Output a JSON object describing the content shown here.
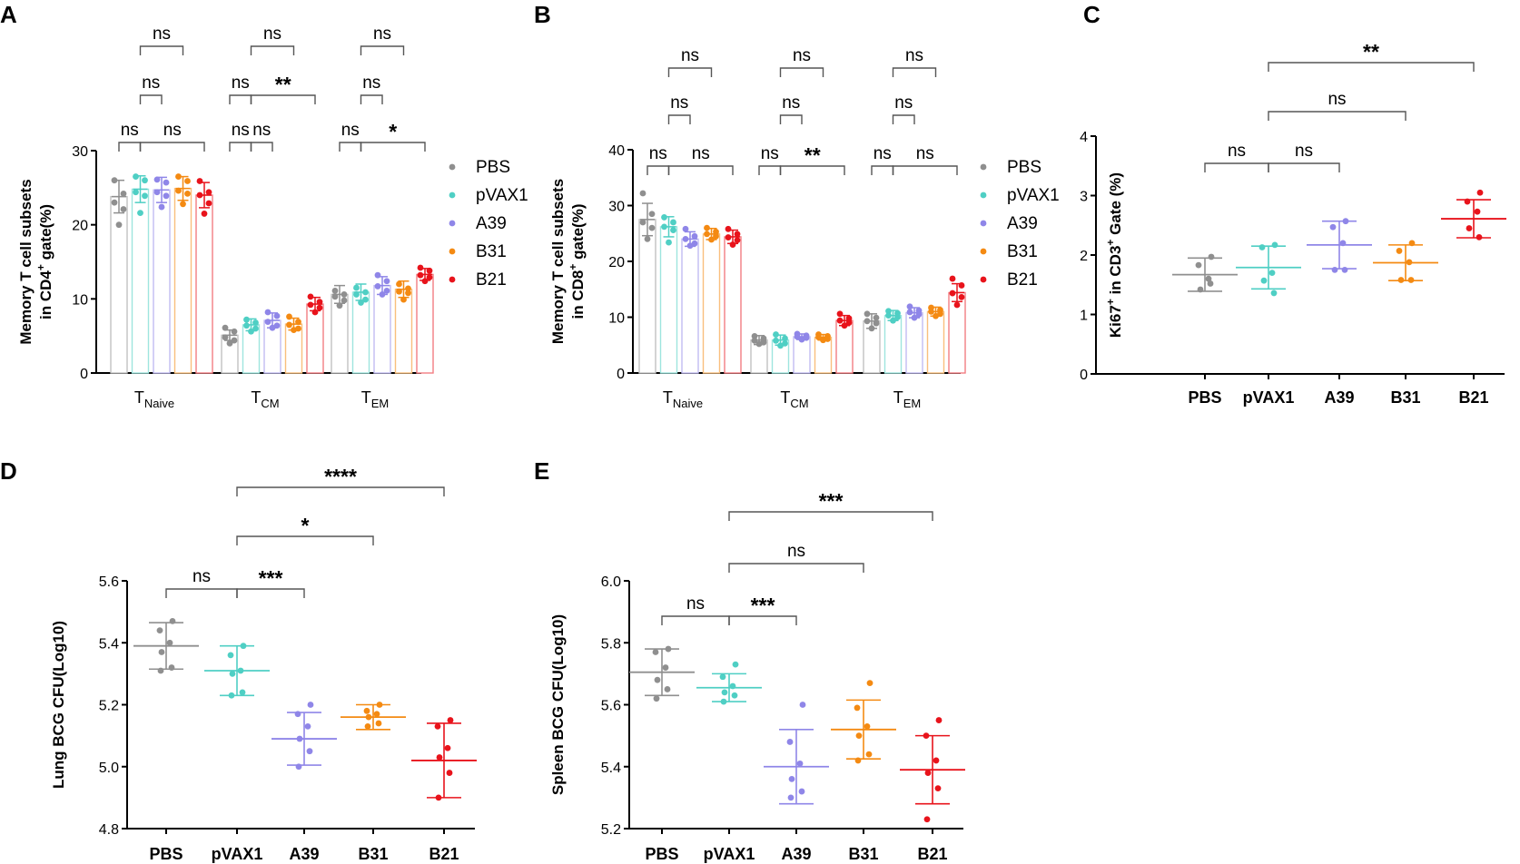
{
  "colors": {
    "PBS": "#8f8f8f",
    "pVAX1": "#4fcfc4",
    "A39": "#8f86e8",
    "B31": "#f48a12",
    "B21": "#e8131b",
    "axis": "#000000",
    "bracket": "#555555"
  },
  "chart_data": [
    {
      "panel": "A",
      "type": "bar",
      "ylabel_line1": "Memory T cell subsets",
      "ylabel_line2_pre": "in CD4",
      "ylabel_sup": "+",
      "ylabel_line2_post": " gate(%)",
      "ylim": [
        0,
        30
      ],
      "yticks": [
        0,
        10,
        20,
        30
      ],
      "categories": [
        {
          "main": "T",
          "sub": "Naive"
        },
        {
          "main": "T",
          "sub": "CM"
        },
        {
          "main": "T",
          "sub": "EM"
        }
      ],
      "legend": [
        "PBS",
        "pVAX1",
        "A39",
        "B31",
        "B21"
      ],
      "series": [
        {
          "name": "PBS",
          "values": [
            23.8,
            5.1,
            10.6
          ],
          "sd": [
            2.2,
            0.7,
            1.2
          ],
          "points": [
            [
              26.0,
              24.2,
              23.0,
              22.1,
              20.0
            ],
            [
              6.1,
              5.6,
              4.8,
              4.4,
              4.0
            ]
          ]
        },
        {
          "name": "pVAX1",
          "values": [
            24.8,
            6.5,
            10.9
          ],
          "sd": [
            1.8,
            0.8,
            1.1
          ],
          "points": [
            [
              26.5,
              26.0,
              24.4,
              23.9,
              21.6
            ],
            [
              7.2,
              6.8,
              6.4,
              6.0,
              5.6
            ]
          ]
        },
        {
          "name": "A39",
          "values": [
            24.7,
            7.1,
            11.8
          ],
          "sd": [
            1.7,
            1.0,
            1.2
          ],
          "points": [
            [
              26.1,
              25.7,
              24.4,
              23.9,
              22.4
            ],
            [
              8.2,
              7.7,
              6.9,
              6.4,
              6.1
            ]
          ]
        },
        {
          "name": "B31",
          "values": [
            24.9,
            6.6,
            11.3
          ],
          "sd": [
            1.6,
            0.8,
            1.1
          ],
          "points": [
            [
              26.5,
              25.9,
              24.6,
              24.2,
              22.8
            ],
            [
              7.6,
              6.9,
              6.5,
              6.0,
              5.8
            ]
          ]
        },
        {
          "name": "B21",
          "values": [
            24.0,
            9.3,
            13.3
          ],
          "sd": [
            1.7,
            0.9,
            0.8
          ],
          "points": [
            [
              25.9,
              24.4,
              24.0,
              22.9,
              21.5
            ],
            [
              10.3,
              9.6,
              9.2,
              8.8,
              8.2
            ]
          ]
        }
      ],
      "em_points": [
        [
          11.1,
          10.6,
          10.3,
          9.8,
          9.1
        ],
        [
          11.5,
          10.9,
          10.6,
          9.9,
          9.5
        ],
        [
          13.2,
          12.4,
          11.7,
          11.1,
          10.6
        ],
        [
          12.0,
          11.4,
          11.0,
          10.8,
          9.9
        ],
        [
          14.2,
          13.8,
          13.2,
          12.9,
          12.4
        ]
      ],
      "annotations": [
        {
          "group": 0,
          "from": 0,
          "to": 1,
          "level": 1,
          "label": "ns"
        },
        {
          "group": 0,
          "from": 1,
          "to": 4,
          "level": 1,
          "label": "ns"
        },
        {
          "group": 0,
          "from": 1,
          "to": 2,
          "level": 2,
          "label": "ns"
        },
        {
          "group": 0,
          "from": 1,
          "to": 3,
          "level": 3,
          "label": "ns"
        },
        {
          "group": 1,
          "from": 0,
          "to": 1,
          "level": 1,
          "label": "ns"
        },
        {
          "group": 1,
          "from": 1,
          "to": 2,
          "level": 1,
          "label": "ns"
        },
        {
          "group": 1,
          "from": 0,
          "to": 1,
          "level": 2,
          "label": "ns"
        },
        {
          "group": 1,
          "from": 1,
          "to": 4,
          "level": 2,
          "label": "**"
        },
        {
          "group": 1,
          "from": 1,
          "to": 3,
          "level": 3,
          "label": "ns"
        },
        {
          "group": 2,
          "from": 0,
          "to": 1,
          "level": 1,
          "label": "ns"
        },
        {
          "group": 2,
          "from": 1,
          "to": 4,
          "level": 1,
          "label": "*"
        },
        {
          "group": 2,
          "from": 1,
          "to": 2,
          "level": 2,
          "label": "ns"
        },
        {
          "group": 2,
          "from": 1,
          "to": 3,
          "level": 3,
          "label": "ns"
        }
      ]
    },
    {
      "panel": "B",
      "type": "bar",
      "ylabel_line1": "Memory T cell subsets",
      "ylabel_line2_pre": "in CD8",
      "ylabel_sup": "+",
      "ylabel_line2_post": " gate(%)",
      "ylim": [
        0,
        40
      ],
      "yticks": [
        0,
        10,
        20,
        30,
        40
      ],
      "categories": [
        {
          "main": "T",
          "sub": "Naive"
        },
        {
          "main": "T",
          "sub": "CM"
        },
        {
          "main": "T",
          "sub": "EM"
        }
      ],
      "legend": [
        "PBS",
        "pVAX1",
        "A39",
        "B31",
        "B21"
      ],
      "series": [
        {
          "name": "PBS",
          "values": [
            27.5,
            5.9,
            9.3
          ],
          "sd": [
            2.9,
            0.8,
            1.3
          ],
          "points": [
            [
              32.2,
              28.5,
              27.0,
              26.0,
              24.0
            ],
            [
              6.6,
              6.2,
              5.8,
              5.5,
              5.2
            ]
          ]
        },
        {
          "name": "pVAX1",
          "values": [
            26.2,
            5.9,
            10.3
          ],
          "sd": [
            1.8,
            0.9,
            0.9
          ],
          "points": [
            [
              27.9,
              27.0,
              26.2,
              25.6,
              23.4
            ],
            [
              6.9,
              6.2,
              5.8,
              5.3,
              4.9
            ]
          ]
        },
        {
          "name": "A39",
          "values": [
            24.0,
            6.5,
            10.8
          ],
          "sd": [
            1.3,
            0.5,
            0.9
          ],
          "points": [
            [
              25.8,
              24.5,
              24.0,
              23.2,
              22.8
            ],
            [
              7.0,
              6.7,
              6.5,
              6.3,
              6.0
            ]
          ]
        },
        {
          "name": "B31",
          "values": [
            24.9,
            6.4,
            11.0
          ],
          "sd": [
            1.0,
            0.5,
            0.8
          ],
          "points": [
            [
              26.0,
              25.3,
              24.9,
              24.5,
              23.9
            ],
            [
              6.9,
              6.6,
              6.4,
              6.1,
              5.9
            ]
          ]
        },
        {
          "name": "B21",
          "values": [
            24.4,
            9.4,
            14.4
          ],
          "sd": [
            1.2,
            0.9,
            1.6
          ],
          "points": [
            [
              25.8,
              24.9,
              24.3,
              23.8,
              23.0
            ],
            [
              10.6,
              9.8,
              9.4,
              9.0,
              8.5
            ]
          ]
        }
      ],
      "em_points": [
        [
          10.6,
          9.9,
          9.3,
          8.9,
          8.0
        ],
        [
          11.1,
          10.7,
          10.3,
          10.0,
          9.4
        ],
        [
          11.9,
          11.2,
          10.9,
          10.5,
          9.9
        ],
        [
          11.7,
          11.3,
          11.0,
          10.6,
          10.2
        ],
        [
          16.9,
          15.7,
          14.3,
          13.6,
          12.2
        ]
      ],
      "annotations": [
        {
          "group": 0,
          "from": 0,
          "to": 1,
          "level": 1,
          "label": "ns"
        },
        {
          "group": 0,
          "from": 1,
          "to": 4,
          "level": 1,
          "label": "ns"
        },
        {
          "group": 0,
          "from": 1,
          "to": 2,
          "level": 2,
          "label": "ns"
        },
        {
          "group": 0,
          "from": 1,
          "to": 3,
          "level": 3,
          "label": "ns"
        },
        {
          "group": 1,
          "from": 0,
          "to": 1,
          "level": 1,
          "label": "ns"
        },
        {
          "group": 1,
          "from": 1,
          "to": 4,
          "level": 1,
          "label": "**"
        },
        {
          "group": 1,
          "from": 1,
          "to": 2,
          "level": 2,
          "label": "ns"
        },
        {
          "group": 1,
          "from": 1,
          "to": 3,
          "level": 3,
          "label": "ns"
        },
        {
          "group": 2,
          "from": 0,
          "to": 1,
          "level": 1,
          "label": "ns"
        },
        {
          "group": 2,
          "from": 1,
          "to": 4,
          "level": 1,
          "label": "ns"
        },
        {
          "group": 2,
          "from": 1,
          "to": 2,
          "level": 2,
          "label": "ns"
        },
        {
          "group": 2,
          "from": 1,
          "to": 3,
          "level": 3,
          "label": "ns"
        }
      ]
    },
    {
      "panel": "C",
      "type": "scatter",
      "ylabel_pre": "Ki67",
      "ylabel_sup1": "+",
      "ylabel_mid": " in CD3",
      "ylabel_sup2": "+",
      "ylabel_post": " Gate (%)",
      "ylim": [
        0,
        4
      ],
      "yticks": [
        0,
        1,
        2,
        3,
        4
      ],
      "categories": [
        "PBS",
        "pVAX1",
        "A39",
        "B31",
        "B21"
      ],
      "means": [
        1.67,
        1.79,
        2.17,
        1.87,
        2.61
      ],
      "sd": [
        0.28,
        0.36,
        0.4,
        0.3,
        0.32
      ],
      "points": [
        [
          1.97,
          1.83,
          1.6,
          1.42,
          1.52
        ],
        [
          2.17,
          2.13,
          1.7,
          1.57,
          1.36
        ],
        [
          2.57,
          2.47,
          2.2,
          1.75,
          1.75
        ],
        [
          2.2,
          2.07,
          1.88,
          1.58,
          1.58
        ],
        [
          3.05,
          2.9,
          2.73,
          2.45,
          2.3
        ]
      ],
      "annotations": [
        {
          "from": 0,
          "to": 1,
          "level": 1,
          "label": "ns"
        },
        {
          "from": 1,
          "to": 2,
          "level": 1,
          "label": "ns"
        },
        {
          "from": 1,
          "to": 3,
          "level": 2,
          "label": "ns"
        },
        {
          "from": 1,
          "to": 4,
          "level": 3,
          "label": "**"
        }
      ]
    },
    {
      "panel": "D",
      "type": "scatter",
      "ylabel": "Lung  BCG CFU(Log10)",
      "ylim": [
        4.8,
        5.6
      ],
      "yticks": [
        "4.8",
        "5.0",
        "5.2",
        "5.4",
        "5.6"
      ],
      "categories": [
        "PBS",
        "pVAX1",
        "A39",
        "B31",
        "B21"
      ],
      "means": [
        5.39,
        5.31,
        5.09,
        5.16,
        5.02
      ],
      "sd": [
        0.075,
        0.08,
        0.085,
        0.04,
        0.12
      ],
      "points": [
        [
          5.47,
          5.44,
          5.4,
          5.37,
          5.32,
          5.31
        ],
        [
          5.39,
          5.36,
          5.31,
          5.3,
          5.24,
          5.23
        ],
        [
          5.2,
          5.17,
          5.13,
          5.09,
          5.05,
          5.0
        ],
        [
          5.2,
          5.18,
          5.17,
          5.16,
          5.14,
          5.13
        ],
        [
          5.15,
          5.13,
          5.06,
          5.03,
          4.98,
          4.9
        ]
      ],
      "annotations": [
        {
          "from": 0,
          "to": 1,
          "level": 1,
          "label": "ns"
        },
        {
          "from": 1,
          "to": 2,
          "level": 1,
          "label": "***"
        },
        {
          "from": 1,
          "to": 3,
          "level": 2,
          "label": "*"
        },
        {
          "from": 1,
          "to": 4,
          "level": 3,
          "label": "****"
        }
      ]
    },
    {
      "panel": "E",
      "type": "scatter",
      "ylabel": "Spleen  BCG CFU(Log10)",
      "ylim": [
        5.2,
        6.0
      ],
      "yticks": [
        "5.2",
        "5.4",
        "5.6",
        "5.8",
        "6.0"
      ],
      "categories": [
        "PBS",
        "pVAX1",
        "A39",
        "B31",
        "B21"
      ],
      "means": [
        5.705,
        5.655,
        5.4,
        5.52,
        5.39
      ],
      "sd": [
        0.075,
        0.045,
        0.12,
        0.095,
        0.11
      ],
      "points": [
        [
          5.78,
          5.77,
          5.72,
          5.68,
          5.65,
          5.62
        ],
        [
          5.73,
          5.69,
          5.66,
          5.64,
          5.63,
          5.61
        ],
        [
          5.6,
          5.48,
          5.41,
          5.36,
          5.32,
          5.3
        ],
        [
          5.67,
          5.59,
          5.53,
          5.5,
          5.44,
          5.42
        ],
        [
          5.55,
          5.5,
          5.42,
          5.38,
          5.33,
          5.23
        ]
      ],
      "annotations": [
        {
          "from": 0,
          "to": 1,
          "level": 1,
          "label": "ns"
        },
        {
          "from": 1,
          "to": 2,
          "level": 1,
          "label": "***"
        },
        {
          "from": 1,
          "to": 3,
          "level": 2,
          "label": "ns"
        },
        {
          "from": 1,
          "to": 4,
          "level": 3,
          "label": "***"
        }
      ]
    }
  ]
}
